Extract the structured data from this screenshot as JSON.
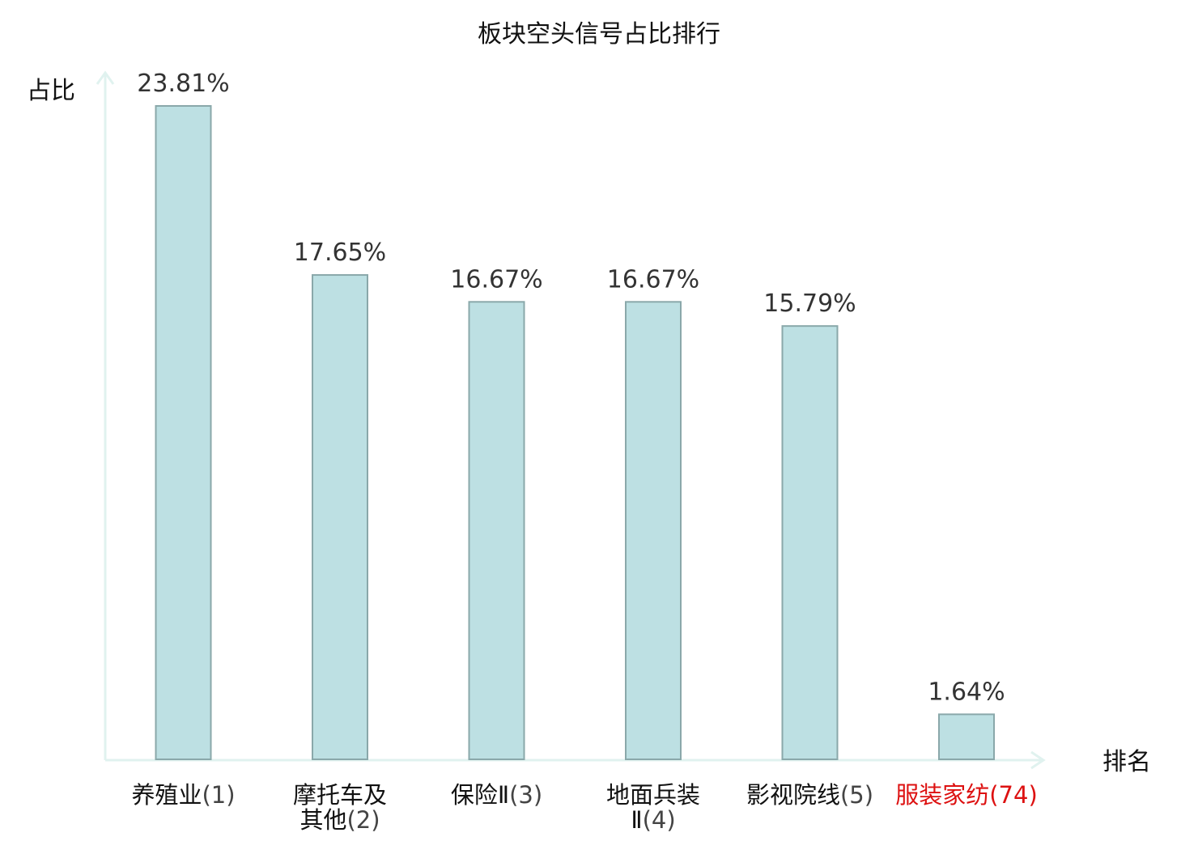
{
  "chart_data": {
    "type": "bar",
    "title": "板块空头信号占比排行",
    "ylabel": "占比",
    "xlabel": "排名",
    "ylim": [
      0,
      25
    ],
    "categories": [
      {
        "lines": [
          "养殖业"
        ],
        "rank": "(1)",
        "highlight": false
      },
      {
        "lines": [
          "摩托车及",
          "其他"
        ],
        "rank": "(2)",
        "highlight": false
      },
      {
        "lines": [
          "保险Ⅱ"
        ],
        "rank": "(3)",
        "highlight": false
      },
      {
        "lines": [
          "地面兵装",
          "Ⅱ"
        ],
        "rank": "(4)",
        "highlight": false
      },
      {
        "lines": [
          "影视院线"
        ],
        "rank": "(5)",
        "highlight": false
      },
      {
        "lines": [
          "服装家纺"
        ],
        "rank": "(74)",
        "highlight": true
      }
    ],
    "values": [
      23.81,
      17.65,
      16.67,
      16.67,
      15.79,
      1.64
    ],
    "value_labels": [
      "23.81%",
      "17.65%",
      "16.67%",
      "16.67%",
      "15.79%",
      "1.64%"
    ],
    "grid": false,
    "colors": {
      "bar_fill": "#bde0e3",
      "bar_stroke": "#8aa8aa",
      "axis": "#e0f2ef",
      "normal_label": "#111111",
      "rank_label": "#444444",
      "highlight_label": "#dd1111"
    }
  }
}
